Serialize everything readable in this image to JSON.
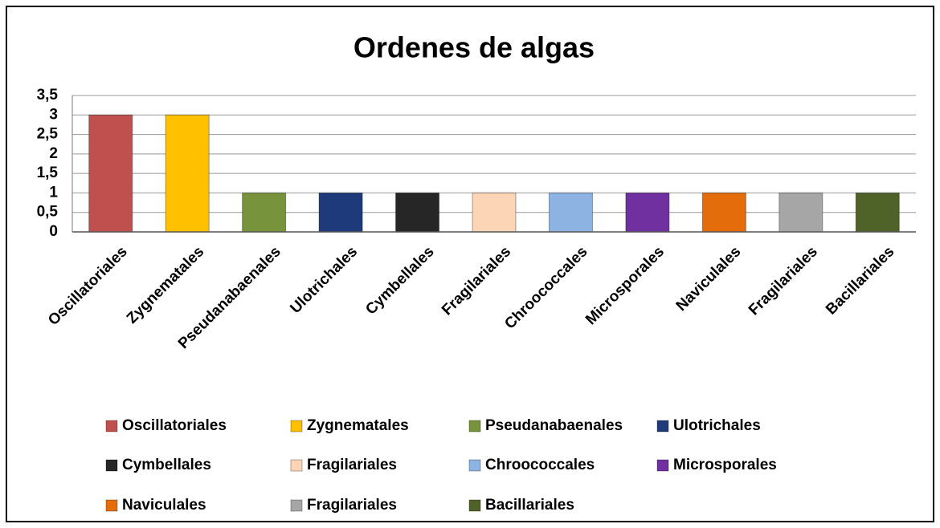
{
  "chart_data": {
    "type": "bar",
    "title": "Ordenes de algas",
    "categories": [
      "Oscillatoriales",
      "Zygnematales",
      "Pseudanabaenales",
      "Ulotrichales",
      "Cymbellales",
      "Fragilariales",
      "Chroococcales",
      "Microsporales",
      "Naviculales",
      "Fragilariales",
      "Bacillariales"
    ],
    "values": [
      3,
      3,
      1,
      1,
      1,
      1,
      1,
      1,
      1,
      1,
      1
    ],
    "colors": [
      "#c0504d",
      "#ffc000",
      "#77933c",
      "#1f3a7a",
      "#262626",
      "#fbd5b5",
      "#8db3e2",
      "#7030a0",
      "#e46c0a",
      "#a6a6a6",
      "#4f6228"
    ],
    "ylim": [
      0,
      3.5
    ],
    "yticks": [
      0,
      {
        "value": 0.5,
        "label": "0,5"
      },
      1,
      {
        "value": 1.5,
        "label": "1,5"
      },
      2,
      {
        "value": 2.5,
        "label": "2,5"
      },
      3,
      {
        "value": 3.5,
        "label": "3,5"
      }
    ],
    "grid": true,
    "legend": "bottom"
  }
}
